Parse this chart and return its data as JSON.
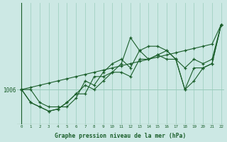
{
  "xlabel": "Graphe pression niveau de la mer (hPa)",
  "background_color": "#cce8e4",
  "grid_color": "#99ccbb",
  "line_color": "#1a5e2a",
  "ref_value": 1006,
  "x_min": 0,
  "x_max": 22,
  "y_min": 998,
  "y_max": 1026,
  "series": [
    [
      1006,
      1006.5,
      1007,
      1007.5,
      1008,
      1008.5,
      1009,
      1009.5,
      1010,
      1010.5,
      1011,
      1011.5,
      1012,
      1012.5,
      1013,
      1013.5,
      1014,
      1014.5,
      1015,
      1015.5,
      1016,
      1016.5,
      1021
    ],
    [
      1006,
      1006,
      1003,
      1002,
      1002,
      1002,
      1004,
      1008,
      1007,
      1010,
      1012,
      1013,
      1011,
      1015,
      1016,
      1016,
      1015,
      1013,
      1011,
      1013,
      1012,
      1013,
      1021
    ],
    [
      1006,
      1003,
      1002,
      1001,
      1001.5,
      1003,
      1005,
      1005,
      1009,
      1009,
      1010,
      1010,
      1009,
      1013,
      1013,
      1014,
      1013,
      1013,
      1006,
      1011,
      1011,
      1012,
      1021
    ],
    [
      1006,
      1003,
      1002,
      1001,
      1001.5,
      1003,
      1005,
      1007,
      1006,
      1008,
      1010,
      1012,
      1018,
      1015,
      1013,
      1014,
      1015,
      1013,
      1006,
      1008,
      1011,
      1012,
      1021
    ]
  ]
}
